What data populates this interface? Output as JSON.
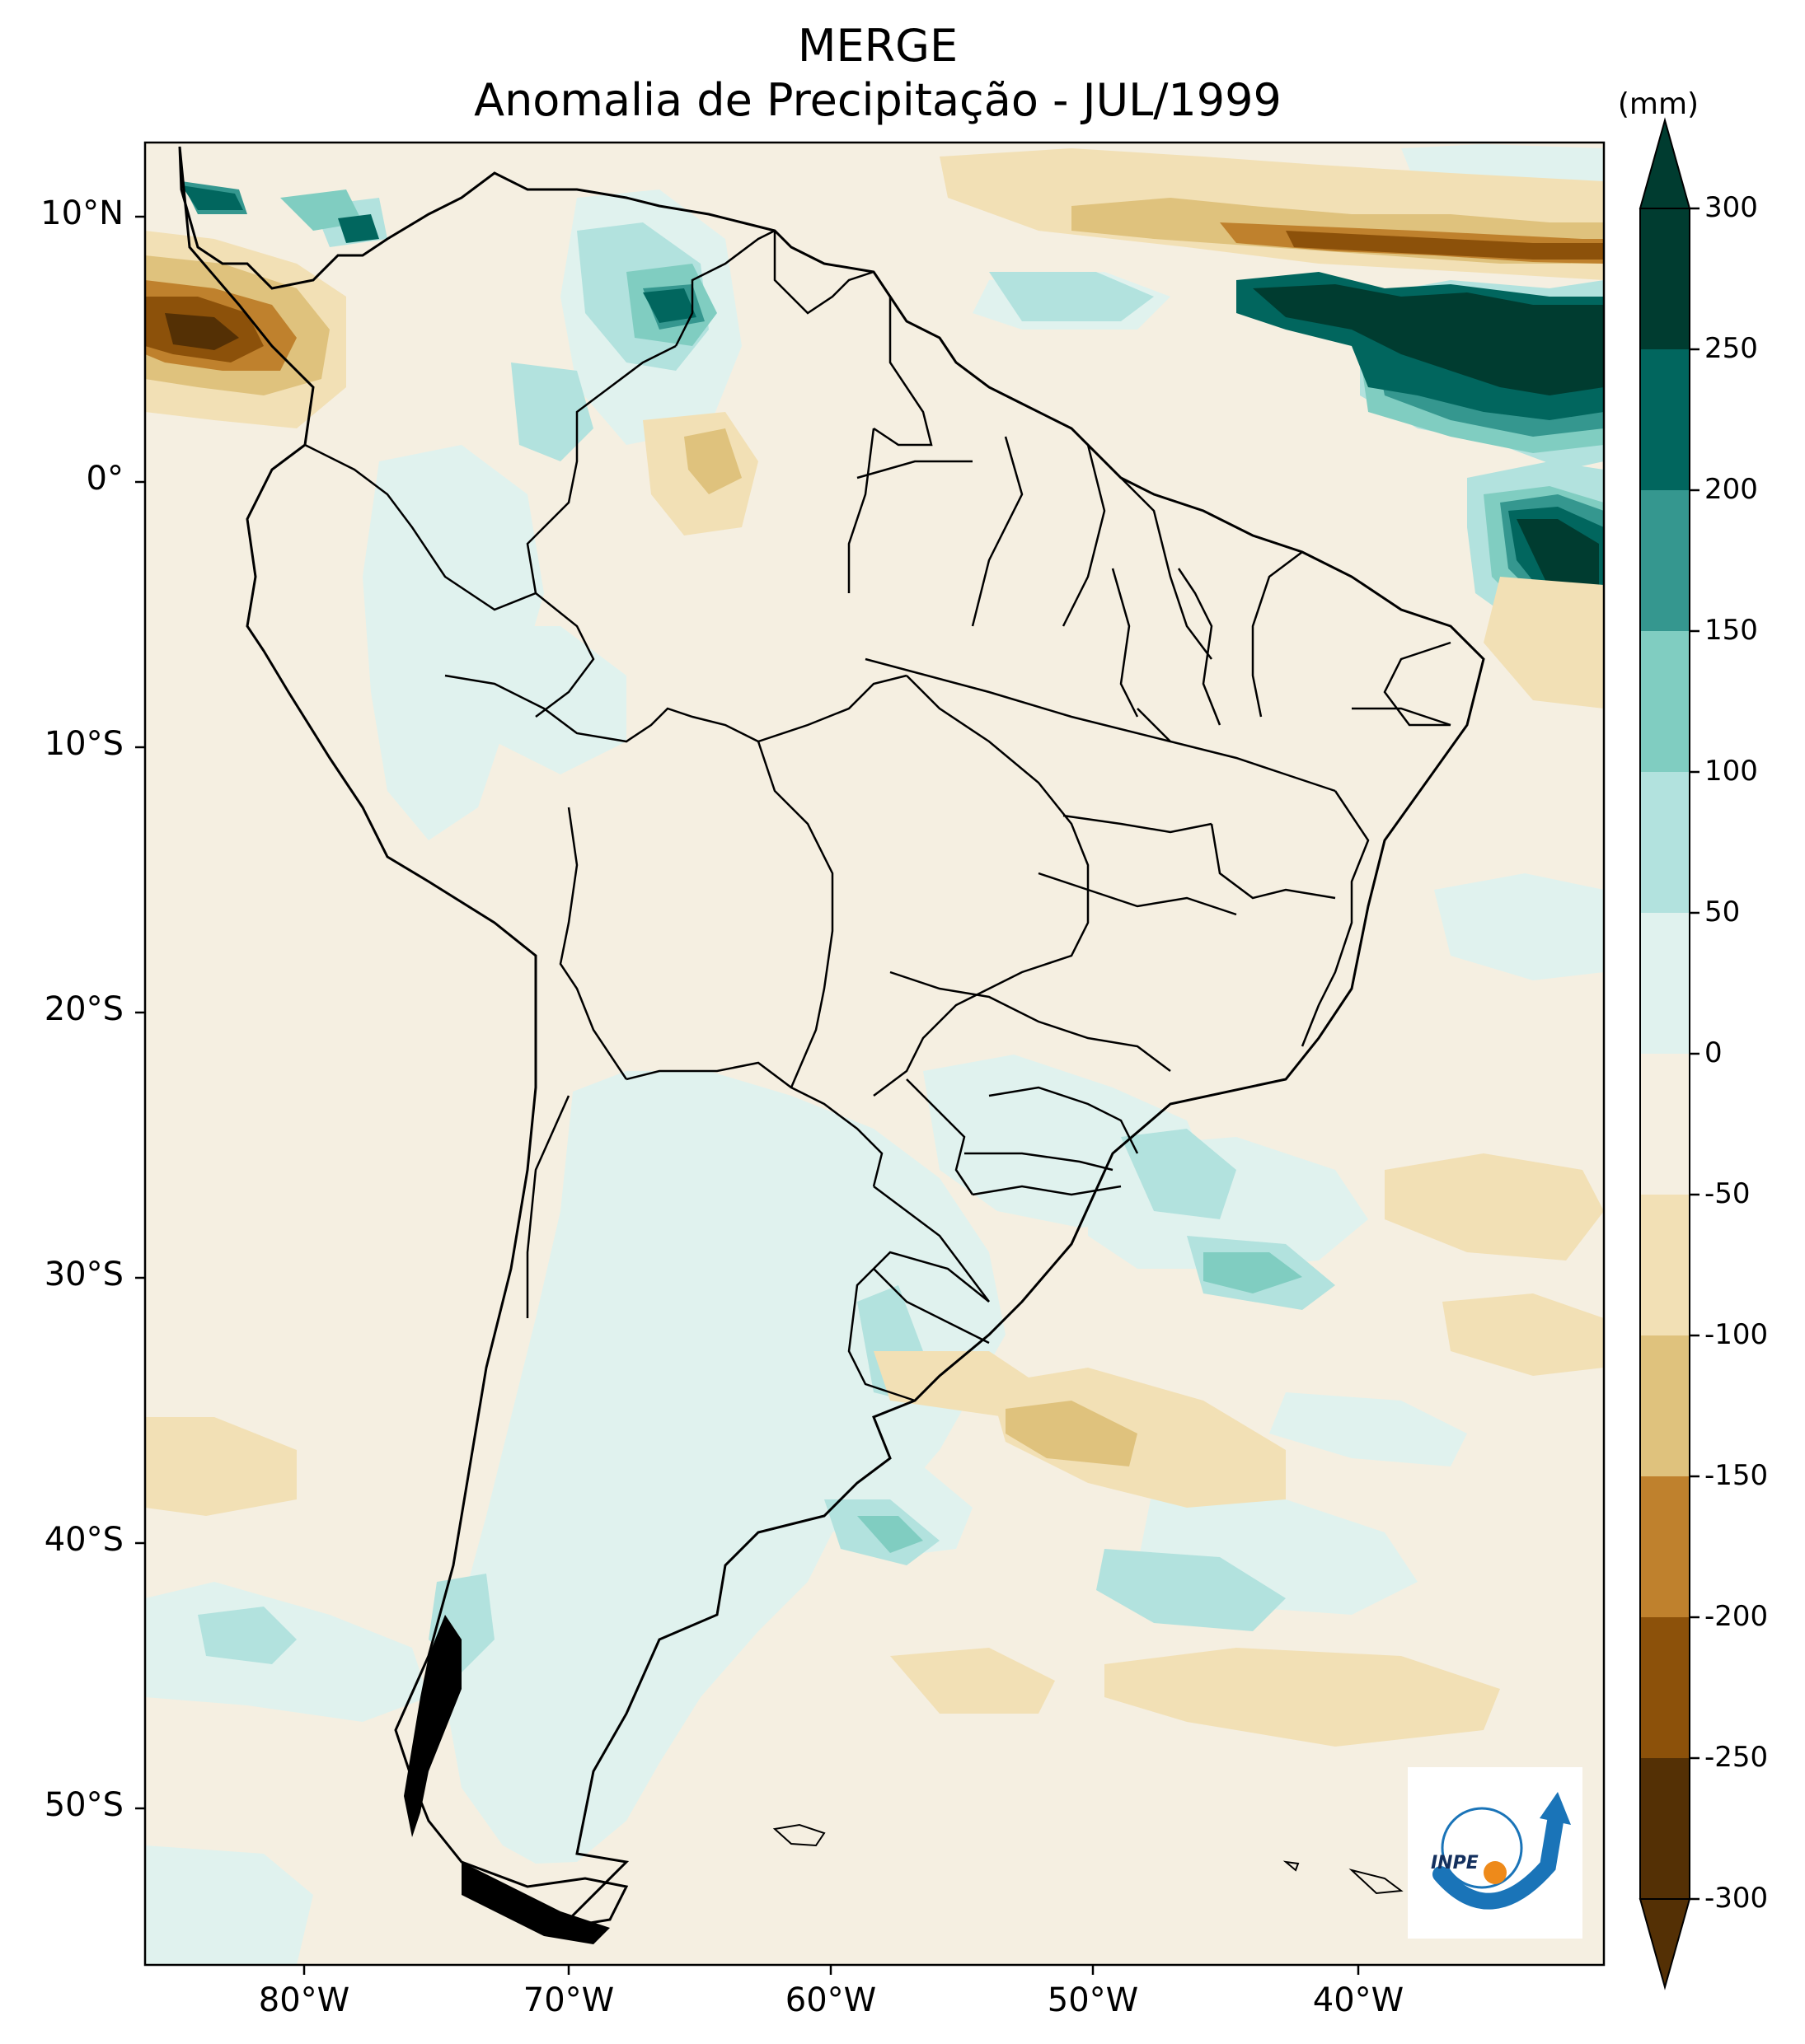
{
  "title": {
    "line1": "MERGE",
    "line2": "Anomalia de Precipitação - JUL/1999"
  },
  "colorbar": {
    "units": "(mm)",
    "ticks": [
      "300",
      "250",
      "200",
      "150",
      "100",
      "50",
      "0",
      "-50",
      "-100",
      "-150",
      "-200",
      "-250",
      "-300"
    ],
    "colors": [
      "#003c30",
      "#01665e",
      "#35978f",
      "#80cdc1",
      "#b2e2de",
      "#e0f2ee",
      "#f5efe1",
      "#f2e0b5",
      "#dfc27d",
      "#bf812d",
      "#8c510a",
      "#543005"
    ]
  },
  "axes": {
    "y_labels": [
      "10°N",
      "0°",
      "10°S",
      "20°S",
      "30°S",
      "40°S",
      "50°S"
    ],
    "x_labels": [
      "80°W",
      "70°W",
      "60°W",
      "50°W",
      "40°W"
    ]
  },
  "map": {
    "region": "South America",
    "lon_range": [
      -85,
      -30
    ],
    "lat_range": [
      -56,
      13
    ]
  },
  "logo": {
    "text": "INPE"
  }
}
